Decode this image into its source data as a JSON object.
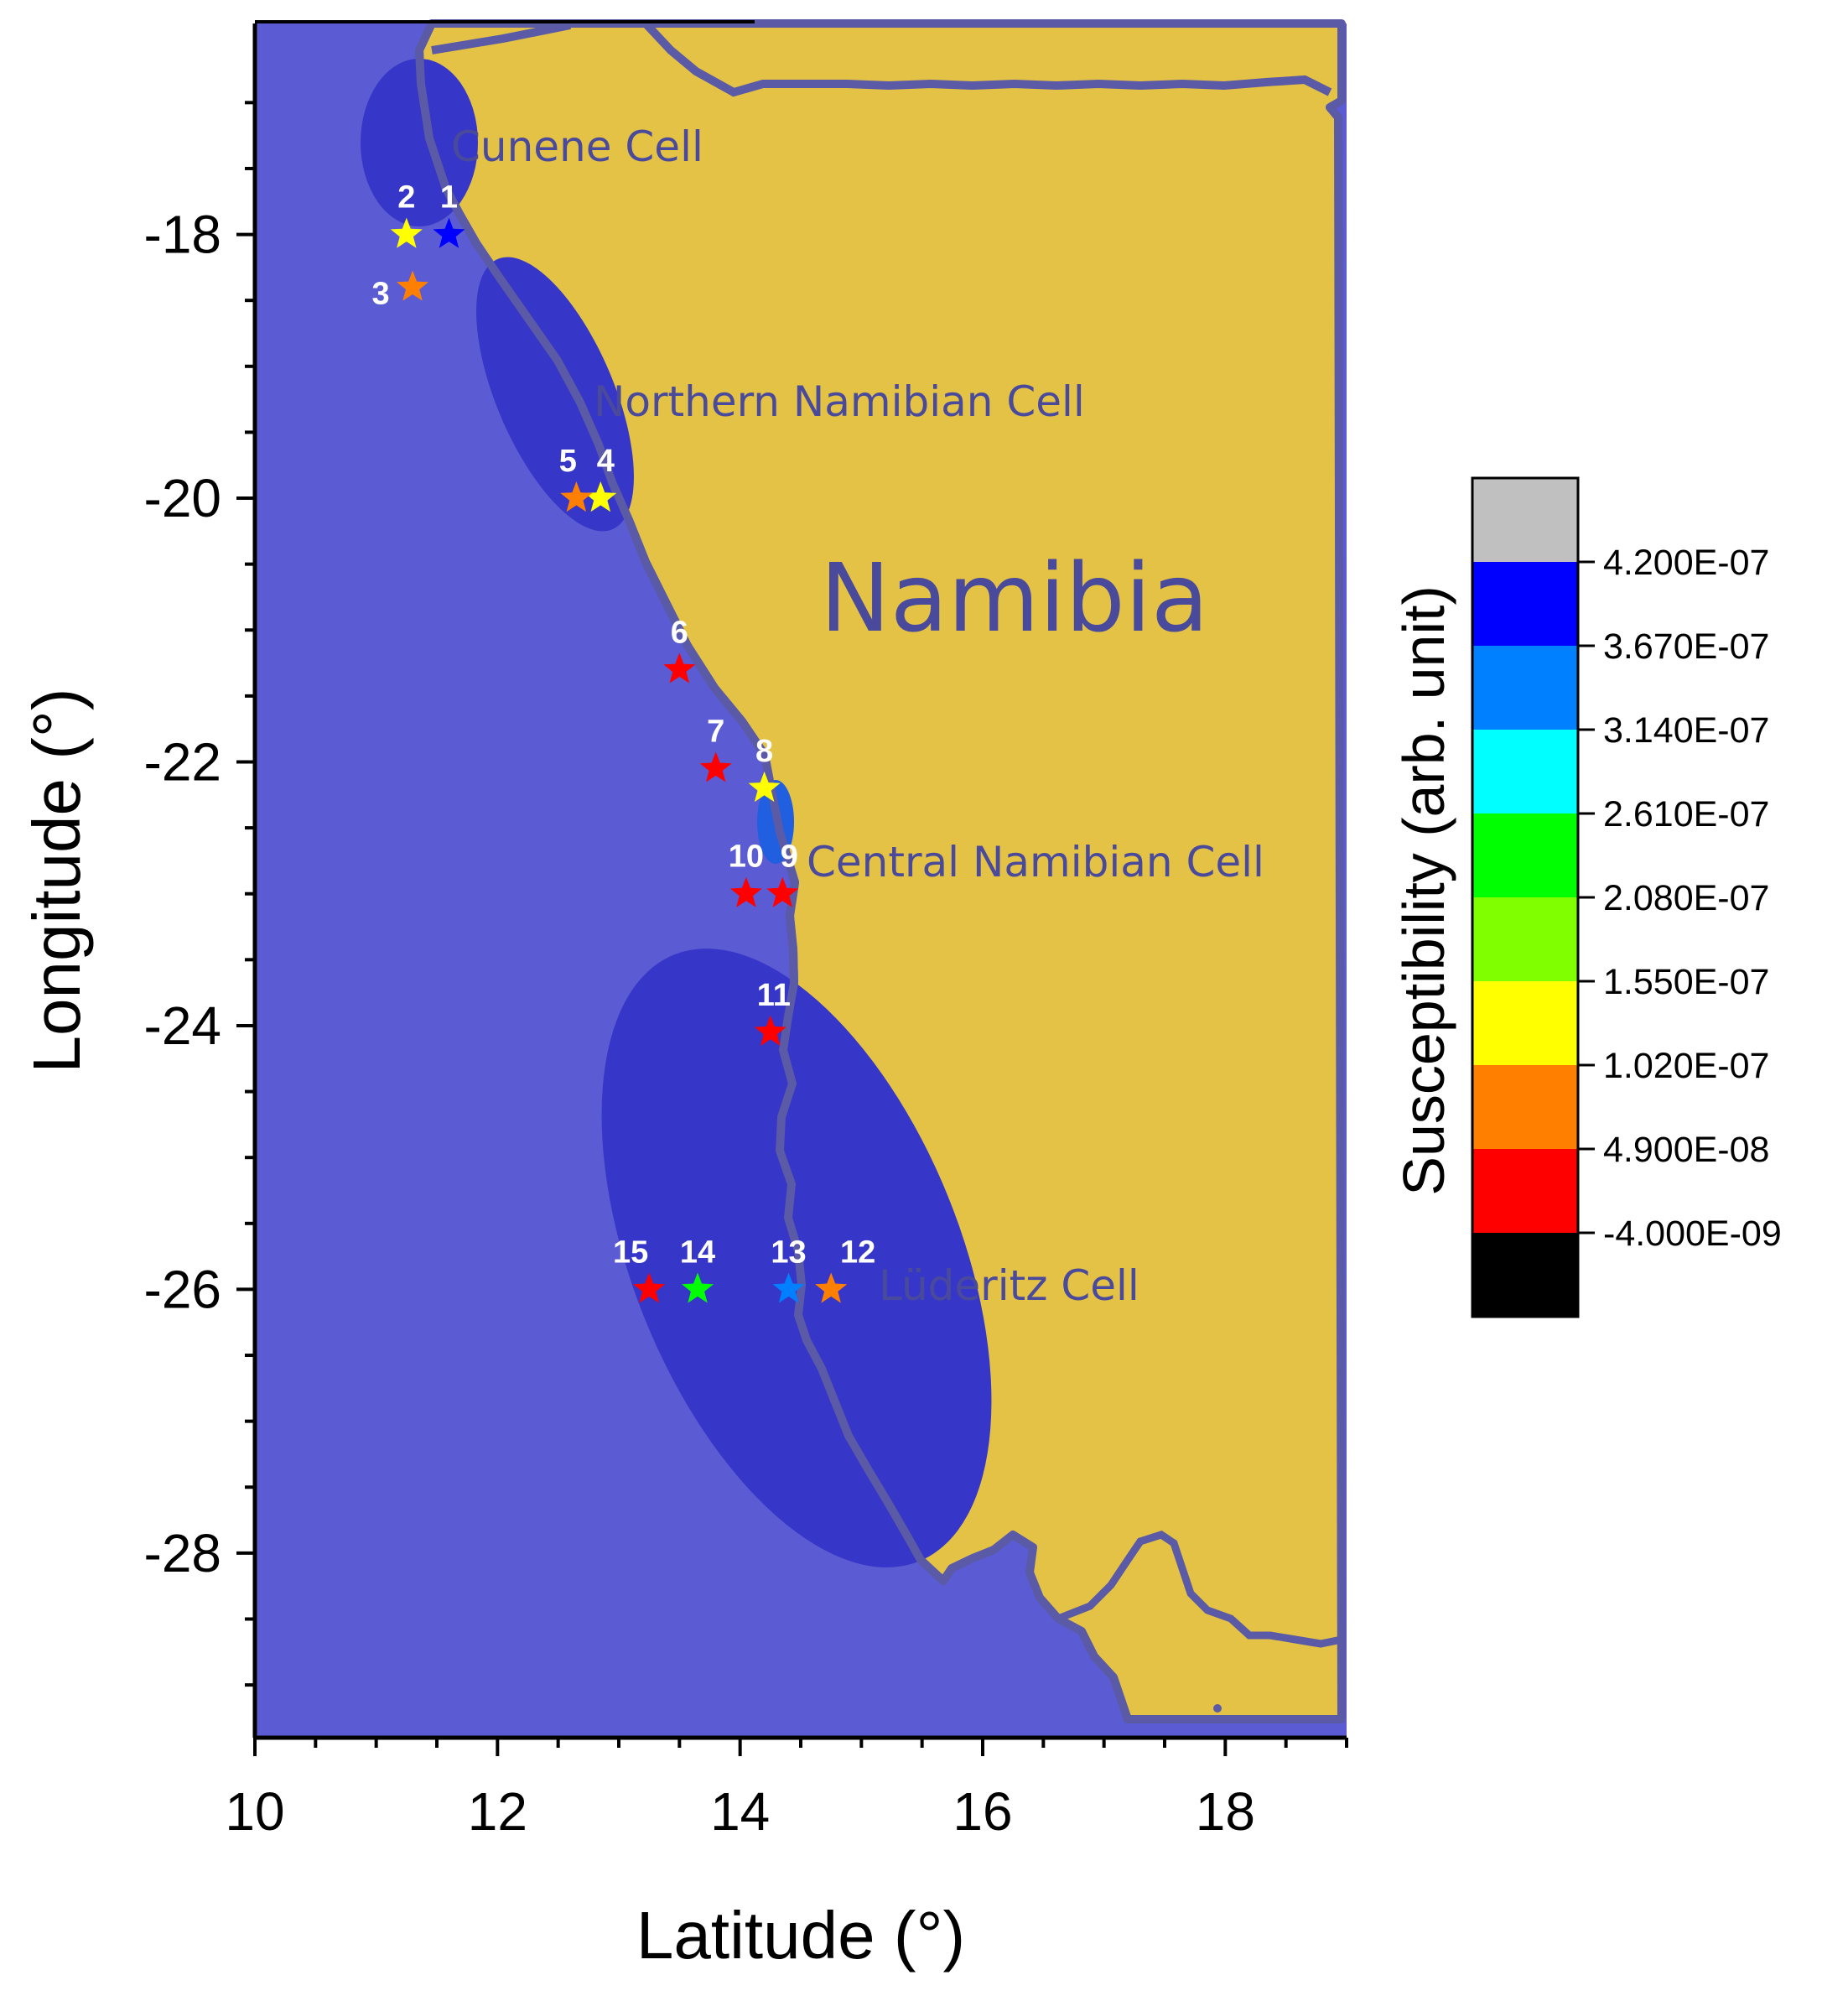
{
  "axes": {
    "xlabel": "Latitude (°)",
    "ylabel": "Longitude (°)",
    "xlim": [
      10,
      19
    ],
    "ylim": [
      -29.4,
      -16.4
    ],
    "xticks": [
      "10",
      "12",
      "14",
      "16",
      "18"
    ],
    "yticks": [
      "-18",
      "-20",
      "-22",
      "-24",
      "-26",
      "-28"
    ]
  },
  "map": {
    "country_label": "Namibia",
    "cells": [
      {
        "name": "Cunene Cell"
      },
      {
        "name": "Northern Namibian Cell"
      },
      {
        "name": "Central Namibian Cell"
      },
      {
        "name": "Lüderitz Cell"
      }
    ],
    "colors": {
      "ocean": "#5b5bd4",
      "land": "#e3c245",
      "cell": "#3636c8",
      "outline": "#5a5aa6"
    }
  },
  "colorbar": {
    "title": "Susceptibility (arb. unit)",
    "ticks": [
      "4.200E-07",
      "3.670E-07",
      "3.140E-07",
      "2.610E-07",
      "2.080E-07",
      "1.550E-07",
      "1.020E-07",
      "4.900E-08",
      "-4.000E-09"
    ],
    "colors": [
      "#c0c0c0",
      "#0000ff",
      "#0080ff",
      "#00ffff",
      "#00ff00",
      "#80ff00",
      "#ffff00",
      "#ff8000",
      "#ff0000",
      "#000000"
    ]
  },
  "chart_data": {
    "type": "scatter",
    "title": "",
    "xlabel": "Latitude (°)",
    "ylabel": "Longitude (°)",
    "xlim": [
      10,
      19
    ],
    "ylim": [
      -29.4,
      -16.4
    ],
    "points": [
      {
        "label": "1",
        "x": 11.6,
        "y": -18.0,
        "color": "#0000ff"
      },
      {
        "label": "2",
        "x": 11.25,
        "y": -18.0,
        "color": "#ffff00"
      },
      {
        "label": "3",
        "x": 11.3,
        "y": -18.4,
        "color": "#ff8000"
      },
      {
        "label": "4",
        "x": 12.85,
        "y": -20.0,
        "color": "#ffff00"
      },
      {
        "label": "5",
        "x": 12.65,
        "y": -20.0,
        "color": "#ff8000"
      },
      {
        "label": "6",
        "x": 13.5,
        "y": -21.3,
        "color": "#ff0000"
      },
      {
        "label": "7",
        "x": 13.8,
        "y": -22.05,
        "color": "#ff0000"
      },
      {
        "label": "8",
        "x": 14.2,
        "y": -22.2,
        "color": "#ffff00"
      },
      {
        "label": "9",
        "x": 14.35,
        "y": -23.0,
        "color": "#ff0000"
      },
      {
        "label": "10",
        "x": 14.05,
        "y": -23.0,
        "color": "#ff0000"
      },
      {
        "label": "11",
        "x": 14.25,
        "y": -24.05,
        "color": "#ff0000"
      },
      {
        "label": "12",
        "x": 14.75,
        "y": -26.0,
        "color": "#ff8000"
      },
      {
        "label": "13",
        "x": 14.4,
        "y": -26.0,
        "color": "#0080ff"
      },
      {
        "label": "14",
        "x": 13.65,
        "y": -26.0,
        "color": "#00ff00"
      },
      {
        "label": "15",
        "x": 13.25,
        "y": -26.0,
        "color": "#ff0000"
      }
    ]
  }
}
